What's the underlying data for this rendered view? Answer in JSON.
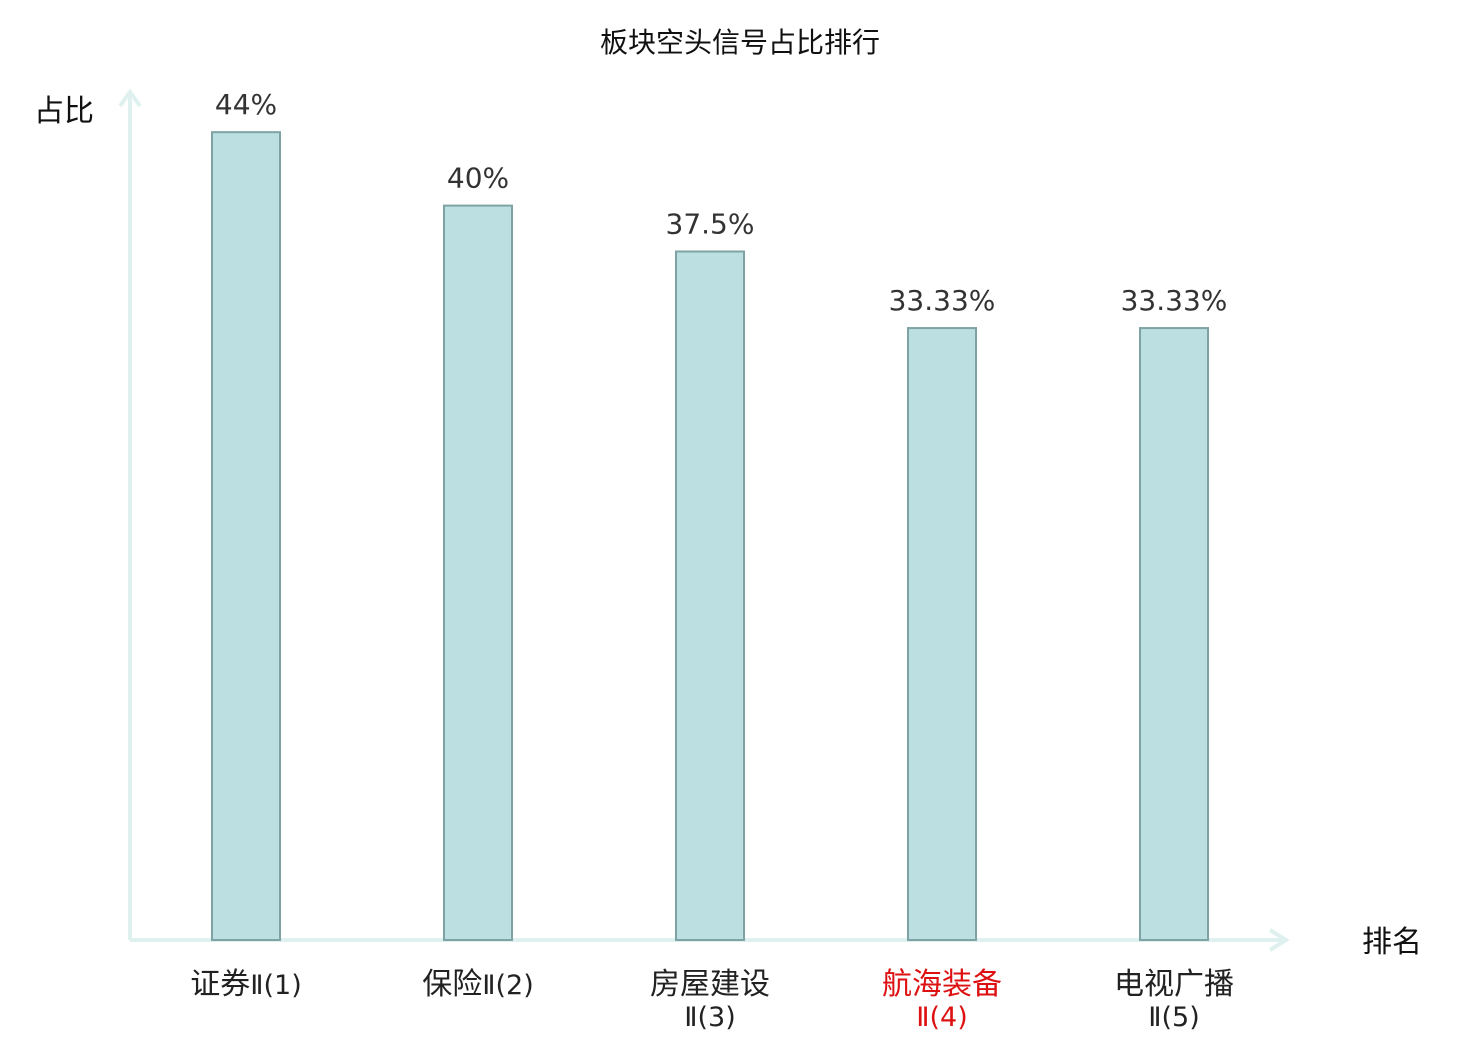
{
  "chart_data": {
    "type": "bar",
    "title": "板块空头信号占比排行",
    "ylabel": "占比",
    "xlabel": "排名",
    "ylim": [
      0,
      50
    ],
    "grid": false,
    "legend": "none",
    "categories": [
      {
        "main": "证券",
        "sub": "Ⅱ(1)",
        "highlight": false
      },
      {
        "main": "保险",
        "sub": "Ⅱ(2)",
        "highlight": false
      },
      {
        "main": "房屋建设",
        "sub": "Ⅱ(3)",
        "highlight": false
      },
      {
        "main": "航海装备",
        "sub": "Ⅱ(4)",
        "highlight": true
      },
      {
        "main": "电视广播",
        "sub": "Ⅱ(5)",
        "highlight": false
      }
    ],
    "values": [
      44,
      40,
      37.5,
      33.33,
      33.33
    ],
    "value_labels": [
      "44%",
      "40%",
      "37.5%",
      "33.33%",
      "33.33%"
    ],
    "colors": {
      "bar_fill": "#bce0e1",
      "bar_stroke": "#7fa3a4",
      "axis": "#dff1ef",
      "highlight_text": "#dd1111",
      "normal_text": "#222222"
    }
  }
}
